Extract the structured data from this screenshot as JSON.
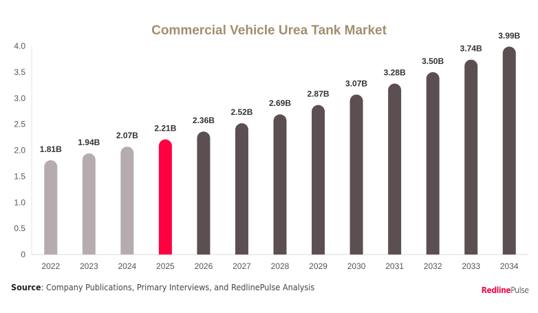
{
  "chart_data": {
    "type": "bar",
    "title": "Commercial Vehicle Urea Tank Market",
    "categories": [
      "2022",
      "2023",
      "2024",
      "2025",
      "2026",
      "2027",
      "2028",
      "2029",
      "2030",
      "2031",
      "2032",
      "2033",
      "2034"
    ],
    "values": [
      1.81,
      1.94,
      2.07,
      2.21,
      2.36,
      2.52,
      2.69,
      2.87,
      3.07,
      3.28,
      3.5,
      3.74,
      3.99
    ],
    "data_labels": [
      "1.81B",
      "1.94B",
      "2.07B",
      "2.21B",
      "2.36B",
      "2.52B",
      "2.69B",
      "2.87B",
      "3.07B",
      "3.28B",
      "3.50B",
      "3.74B",
      "3.99B"
    ],
    "ylim": [
      0,
      4.0
    ],
    "yticks": [
      "0",
      "0.5",
      "1.0",
      "1.5",
      "2.0",
      "2.5",
      "3.0",
      "3.5",
      "4.0"
    ],
    "ytick_values": [
      0,
      0.5,
      1.0,
      1.5,
      2.0,
      2.5,
      3.0,
      3.5,
      4.0
    ],
    "xlabel": "",
    "ylabel": "",
    "grid": false,
    "colors": {
      "historical": "#b6abae",
      "current": "#ff0040",
      "forecast": "#5b4f51",
      "title": "#a38e6f"
    },
    "current_year": "2025"
  },
  "footer": {
    "source_label": "Source",
    "source_text": ": Company Publications, Primary Interviews, and RedlinePulse Analysis",
    "brand_part1": "Redline",
    "brand_part2": "Pulse"
  }
}
